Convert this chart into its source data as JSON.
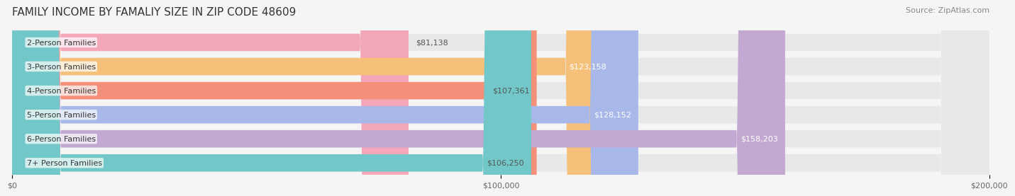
{
  "title": "FAMILY INCOME BY FAMALIY SIZE IN ZIP CODE 48609",
  "source": "Source: ZipAtlas.com",
  "categories": [
    "2-Person Families",
    "3-Person Families",
    "4-Person Families",
    "5-Person Families",
    "6-Person Families",
    "7+ Person Families"
  ],
  "values": [
    81138,
    123158,
    107361,
    128152,
    158203,
    106250
  ],
  "labels": [
    "$81,138",
    "$123,158",
    "$107,361",
    "$128,152",
    "$158,203",
    "$106,250"
  ],
  "bar_colors": [
    "#F4A7B9",
    "#F4C07A",
    "#F4907A",
    "#A8B8E8",
    "#C3A8D1",
    "#72C8C8"
  ],
  "label_colors": [
    "#555555",
    "#ffffff",
    "#555555",
    "#ffffff",
    "#ffffff",
    "#555555"
  ],
  "xlim": [
    0,
    200000
  ],
  "xticks": [
    0,
    100000,
    200000
  ],
  "xtick_labels": [
    "$0",
    "$100,000",
    "$200,000"
  ],
  "bg_color": "#f5f5f5",
  "bar_bg_color": "#e8e8e8",
  "title_fontsize": 11,
  "source_fontsize": 8,
  "label_fontsize": 8,
  "category_fontsize": 8,
  "bar_height": 0.72
}
